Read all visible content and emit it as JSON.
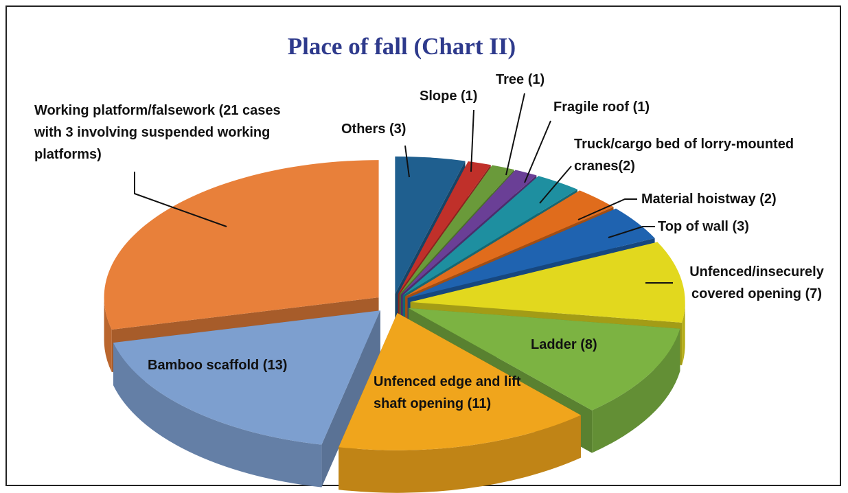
{
  "chart_data": {
    "type": "pie3d",
    "title": "Place of fall (Chart II)",
    "categories": [
      "Others (3)",
      "Slope (1)",
      "Tree (1)",
      "Fragile roof (1)",
      "Truck/cargo bed of lorry-mounted cranes(2)",
      "Material hoistway (2)",
      "Top of wall (3)",
      "Unfenced/insecurely covered opening (7)",
      "Ladder (8)",
      "Unfenced edge and lift shaft opening (11)",
      "Bamboo scaffold (13)",
      "Working platform/falsework (21 cases with 3 involving suspended working platforms)"
    ],
    "values": [
      3,
      1,
      1,
      1,
      2,
      2,
      3,
      7,
      8,
      11,
      13,
      21
    ],
    "colors": [
      "#1f5f8f",
      "#c0302a",
      "#6a9a3a",
      "#6a3f96",
      "#1e8fa0",
      "#e06c1c",
      "#1f63b0",
      "#e2d81e",
      "#7cb342",
      "#f0a51c",
      "#7d9fcf",
      "#e8803a"
    ]
  }
}
